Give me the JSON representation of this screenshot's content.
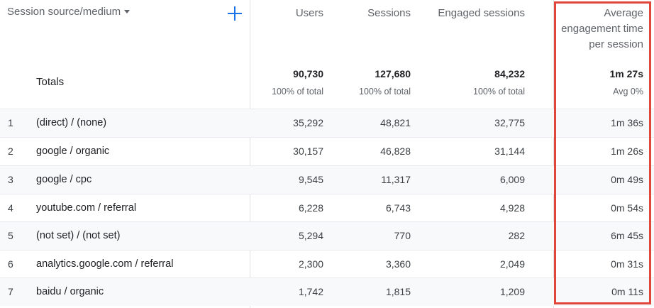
{
  "header": {
    "dimension_label": "Session source/medium",
    "columns": {
      "users": "Users",
      "sessions": "Sessions",
      "engaged_sessions": "Engaged sessions",
      "avg_engagement_line1": "Average",
      "avg_engagement_line2": "engagement time",
      "avg_engagement_line3": "per session"
    }
  },
  "totals": {
    "label": "Totals",
    "users": "90,730",
    "users_sub": "100% of total",
    "sessions": "127,680",
    "sessions_sub": "100% of total",
    "engaged_sessions": "84,232",
    "engaged_sessions_sub": "100% of total",
    "avg_engagement": "1m 27s",
    "avg_engagement_sub": "Avg 0%"
  },
  "rows": [
    {
      "index": "1",
      "source": "(direct) / (none)",
      "users": "35,292",
      "sessions": "48,821",
      "engaged": "32,775",
      "avg": "1m 36s"
    },
    {
      "index": "2",
      "source": "google / organic",
      "users": "30,157",
      "sessions": "46,828",
      "engaged": "31,144",
      "avg": "1m 26s"
    },
    {
      "index": "3",
      "source": "google / cpc",
      "users": "9,545",
      "sessions": "11,317",
      "engaged": "6,009",
      "avg": "0m 49s"
    },
    {
      "index": "4",
      "source": "youtube.com / referral",
      "users": "6,228",
      "sessions": "6,743",
      "engaged": "4,928",
      "avg": "0m 54s"
    },
    {
      "index": "5",
      "source": "(not set) / (not set)",
      "users": "5,294",
      "sessions": "770",
      "engaged": "282",
      "avg": "6m 45s"
    },
    {
      "index": "6",
      "source": "analytics.google.com / referral",
      "users": "2,300",
      "sessions": "3,360",
      "engaged": "2,049",
      "avg": "0m 31s"
    },
    {
      "index": "7",
      "source": "baidu / organic",
      "users": "1,742",
      "sessions": "1,815",
      "engaged": "1,209",
      "avg": "0m 11s"
    }
  ],
  "colors": {
    "accent": "#1a73e8",
    "highlight": "#e0473a",
    "row_shade": "#f8f9fa"
  },
  "icons": {
    "sort": "caret-down-icon",
    "add": "plus-icon"
  }
}
